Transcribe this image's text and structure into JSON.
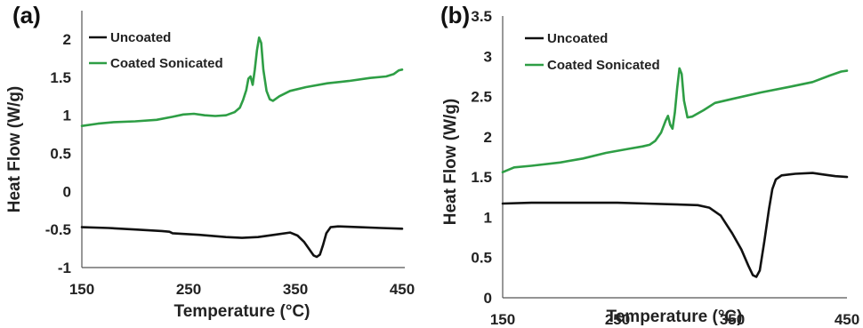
{
  "chart_data": [
    {
      "type": "line",
      "panel_label": "(a)",
      "xlabel": "Temperature (°C)",
      "ylabel": "Heat Flow (W/g)",
      "xlim": [
        150,
        450
      ],
      "ylim": [
        -1,
        2
      ],
      "xticks": [
        150,
        250,
        350,
        450
      ],
      "yticks": [
        -1,
        -0.5,
        0,
        0.5,
        1,
        1.5,
        2
      ],
      "grid": false,
      "legend_position": "top-left",
      "series": [
        {
          "name": "Uncoated",
          "color": "#111111",
          "points": [
            [
              150,
              -0.47
            ],
            [
              175,
              -0.48
            ],
            [
              200,
              -0.5
            ],
            [
              225,
              -0.52
            ],
            [
              232,
              -0.53
            ],
            [
              235,
              -0.55
            ],
            [
              260,
              -0.57
            ],
            [
              285,
              -0.6
            ],
            [
              300,
              -0.61
            ],
            [
              315,
              -0.6
            ],
            [
              330,
              -0.57
            ],
            [
              345,
              -0.54
            ],
            [
              352,
              -0.58
            ],
            [
              358,
              -0.66
            ],
            [
              363,
              -0.76
            ],
            [
              367,
              -0.84
            ],
            [
              370,
              -0.86
            ],
            [
              373,
              -0.83
            ],
            [
              376,
              -0.7
            ],
            [
              379,
              -0.55
            ],
            [
              383,
              -0.47
            ],
            [
              390,
              -0.46
            ],
            [
              410,
              -0.47
            ],
            [
              430,
              -0.48
            ],
            [
              450,
              -0.49
            ]
          ]
        },
        {
          "name": "Coated Sonicated",
          "color": "#2e9e45",
          "points": [
            [
              150,
              0.86
            ],
            [
              165,
              0.89
            ],
            [
              180,
              0.91
            ],
            [
              200,
              0.92
            ],
            [
              220,
              0.94
            ],
            [
              235,
              0.98
            ],
            [
              245,
              1.01
            ],
            [
              255,
              1.02
            ],
            [
              265,
              1.0
            ],
            [
              275,
              0.99
            ],
            [
              285,
              1.0
            ],
            [
              293,
              1.04
            ],
            [
              298,
              1.1
            ],
            [
              301,
              1.2
            ],
            [
              304,
              1.33
            ],
            [
              306,
              1.48
            ],
            [
              308,
              1.51
            ],
            [
              310,
              1.4
            ],
            [
              312,
              1.6
            ],
            [
              314,
              1.85
            ],
            [
              316,
              2.02
            ],
            [
              318,
              1.95
            ],
            [
              320,
              1.6
            ],
            [
              323,
              1.32
            ],
            [
              326,
              1.21
            ],
            [
              329,
              1.19
            ],
            [
              335,
              1.25
            ],
            [
              345,
              1.32
            ],
            [
              360,
              1.37
            ],
            [
              380,
              1.42
            ],
            [
              400,
              1.45
            ],
            [
              420,
              1.49
            ],
            [
              435,
              1.51
            ],
            [
              442,
              1.54
            ],
            [
              447,
              1.59
            ],
            [
              450,
              1.6
            ]
          ]
        }
      ]
    },
    {
      "type": "line",
      "panel_label": "(b)",
      "xlabel": "Temperature (°C)",
      "ylabel": "Heat Flow (W/g)",
      "xlim": [
        150,
        450
      ],
      "ylim": [
        0,
        3.5
      ],
      "xticks": [
        150,
        250,
        350,
        450
      ],
      "yticks": [
        0,
        0.5,
        1,
        1.5,
        2,
        2.5,
        3,
        3.5
      ],
      "grid": false,
      "legend_position": "top-left",
      "series": [
        {
          "name": "Uncoated",
          "color": "#111111",
          "points": [
            [
              150,
              1.17
            ],
            [
              175,
              1.18
            ],
            [
              200,
              1.18
            ],
            [
              225,
              1.18
            ],
            [
              250,
              1.18
            ],
            [
              275,
              1.17
            ],
            [
              300,
              1.16
            ],
            [
              320,
              1.15
            ],
            [
              330,
              1.12
            ],
            [
              340,
              1.02
            ],
            [
              350,
              0.8
            ],
            [
              358,
              0.6
            ],
            [
              364,
              0.4
            ],
            [
              368,
              0.28
            ],
            [
              371,
              0.26
            ],
            [
              374,
              0.34
            ],
            [
              378,
              0.7
            ],
            [
              382,
              1.1
            ],
            [
              385,
              1.35
            ],
            [
              388,
              1.47
            ],
            [
              393,
              1.52
            ],
            [
              405,
              1.54
            ],
            [
              420,
              1.55
            ],
            [
              430,
              1.53
            ],
            [
              440,
              1.51
            ],
            [
              450,
              1.5
            ]
          ]
        },
        {
          "name": "Coated Sonicated",
          "color": "#2e9e45",
          "points": [
            [
              150,
              1.56
            ],
            [
              160,
              1.62
            ],
            [
              175,
              1.64
            ],
            [
              200,
              1.68
            ],
            [
              220,
              1.73
            ],
            [
              240,
              1.8
            ],
            [
              260,
              1.85
            ],
            [
              272,
              1.88
            ],
            [
              278,
              1.9
            ],
            [
              283,
              1.95
            ],
            [
              288,
              2.05
            ],
            [
              292,
              2.2
            ],
            [
              294,
              2.26
            ],
            [
              296,
              2.15
            ],
            [
              298,
              2.1
            ],
            [
              300,
              2.3
            ],
            [
              302,
              2.6
            ],
            [
              304,
              2.85
            ],
            [
              306,
              2.78
            ],
            [
              308,
              2.45
            ],
            [
              311,
              2.24
            ],
            [
              315,
              2.25
            ],
            [
              325,
              2.33
            ],
            [
              335,
              2.42
            ],
            [
              350,
              2.47
            ],
            [
              375,
              2.55
            ],
            [
              400,
              2.62
            ],
            [
              420,
              2.68
            ],
            [
              435,
              2.76
            ],
            [
              445,
              2.81
            ],
            [
              450,
              2.82
            ]
          ]
        }
      ]
    }
  ]
}
